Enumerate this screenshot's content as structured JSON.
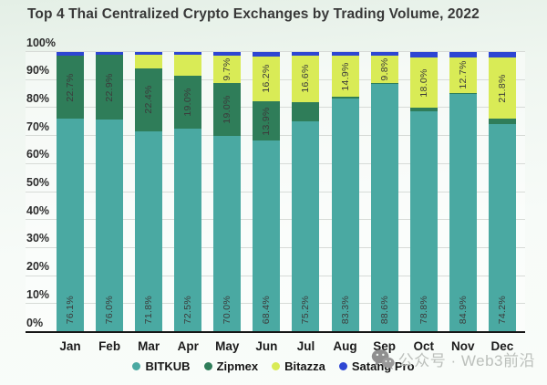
{
  "chart_data": {
    "type": "bar",
    "stacked": true,
    "normalized_to_100": true,
    "title": "Top 4 Thai Centralized Crypto Exchanges by Trading Volume, 2022",
    "categories": [
      "Jan",
      "Feb",
      "Mar",
      "Apr",
      "May",
      "Jun",
      "Jul",
      "Aug",
      "Sep",
      "Oct",
      "Nov",
      "Dec"
    ],
    "ylim": [
      0,
      100
    ],
    "grid": true,
    "legend_position": "bottom",
    "yticks": [
      {
        "value": 0,
        "label": "0%"
      },
      {
        "value": 10,
        "label": "10%"
      },
      {
        "value": 20,
        "label": "20%"
      },
      {
        "value": 30,
        "label": "30%"
      },
      {
        "value": 40,
        "label": "40%"
      },
      {
        "value": 50,
        "label": "50%"
      },
      {
        "value": 60,
        "label": "60%"
      },
      {
        "value": 70,
        "label": "70%"
      },
      {
        "value": 80,
        "label": "80%"
      },
      {
        "value": 90,
        "label": "90%"
      },
      {
        "value": 100,
        "label": "100%"
      }
    ],
    "series": [
      {
        "name": "BITKUB",
        "color": "#4aa9a2",
        "values": [
          76.1,
          76.0,
          71.8,
          72.5,
          70.0,
          68.4,
          75.2,
          83.3,
          88.6,
          78.8,
          84.9,
          74.2
        ],
        "labels": [
          "76.1%",
          "76.0%",
          "71.8%",
          "72.5%",
          "70.0%",
          "68.4%",
          "75.2%",
          "83.3%",
          "88.6%",
          "78.8%",
          "84.9%",
          "74.2%"
        ]
      },
      {
        "name": "Zipmex",
        "color": "#2f7d59",
        "values": [
          22.7,
          22.9,
          22.4,
          19.0,
          19.0,
          13.9,
          7.0,
          0.6,
          0.4,
          1.2,
          0.6,
          2.0
        ],
        "labels": [
          "22.7%",
          "22.9%",
          "22.4%",
          "19.0%",
          "19.0%",
          "13.9%",
          null,
          null,
          null,
          null,
          null,
          null
        ]
      },
      {
        "name": "Bitazza",
        "color": "#d9eb56",
        "values": [
          0,
          0,
          4.8,
          7.5,
          9.7,
          16.2,
          16.6,
          14.9,
          9.8,
          18.0,
          12.7,
          21.8
        ],
        "labels": [
          null,
          null,
          null,
          null,
          "9.7%",
          "16.2%",
          "16.6%",
          "14.9%",
          "9.8%",
          "18.0%",
          "12.7%",
          "21.8%"
        ]
      },
      {
        "name": "Satang Pro",
        "color": "#2e46d3",
        "values": [
          1.2,
          1.1,
          1.0,
          1.0,
          1.3,
          1.5,
          1.2,
          1.2,
          1.2,
          2.0,
          1.8,
          2.0
        ],
        "labels": [
          null,
          null,
          null,
          null,
          null,
          null,
          null,
          null,
          null,
          null,
          null,
          null
        ]
      }
    ]
  },
  "watermark": {
    "icon": "wechat-icon",
    "text": "公众号 · Web3前沿"
  },
  "colors": {
    "background_top": "#e4efe6",
    "background_bottom": "#f9fcf9",
    "axis": "#161616",
    "grid": "#d7dbd7",
    "title_text": "#383838",
    "bar_label_text": "#3b3b3b",
    "watermark_text": "#bcc0bc",
    "watermark_icon": "#8f8f8f"
  }
}
